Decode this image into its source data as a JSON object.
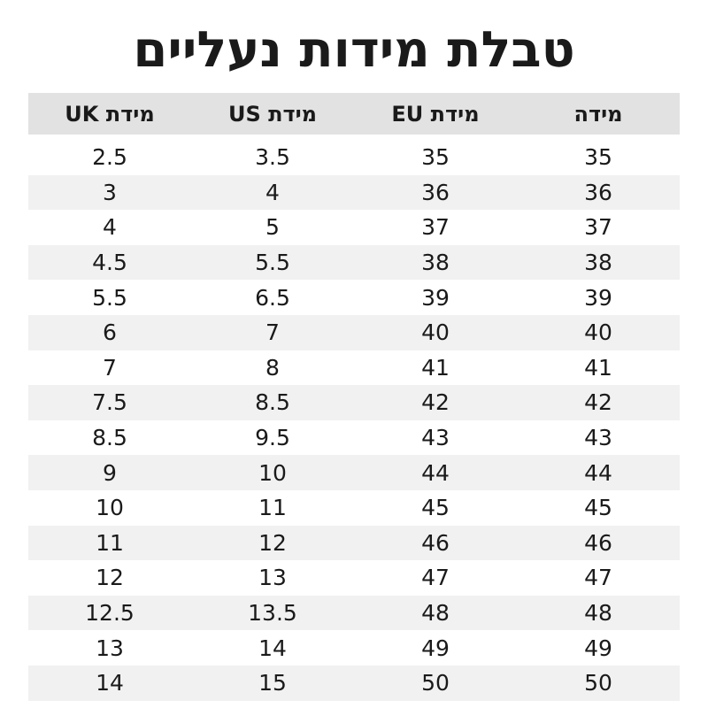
{
  "title": "טבלת מידות נעליים",
  "table": {
    "header": [
      "מידה",
      "מידת EU",
      "מידת US",
      "מידת UK"
    ],
    "rows": [
      [
        35,
        35,
        3.5,
        2.5
      ],
      [
        36,
        36,
        4,
        3
      ],
      [
        37,
        37,
        5,
        4
      ],
      [
        38,
        38,
        5.5,
        4.5
      ],
      [
        39,
        39,
        6.5,
        5.5
      ],
      [
        40,
        40,
        7,
        6
      ],
      [
        41,
        41,
        8,
        7
      ],
      [
        42,
        42,
        8.5,
        7.5
      ],
      [
        43,
        43,
        9.5,
        8.5
      ],
      [
        44,
        44,
        10,
        9
      ],
      [
        45,
        45,
        11,
        10
      ],
      [
        46,
        46,
        12,
        11
      ],
      [
        47,
        47,
        13,
        12
      ],
      [
        48,
        48,
        13.5,
        12.5
      ],
      [
        49,
        49,
        14,
        13
      ],
      [
        50,
        50,
        15,
        14
      ]
    ]
  }
}
